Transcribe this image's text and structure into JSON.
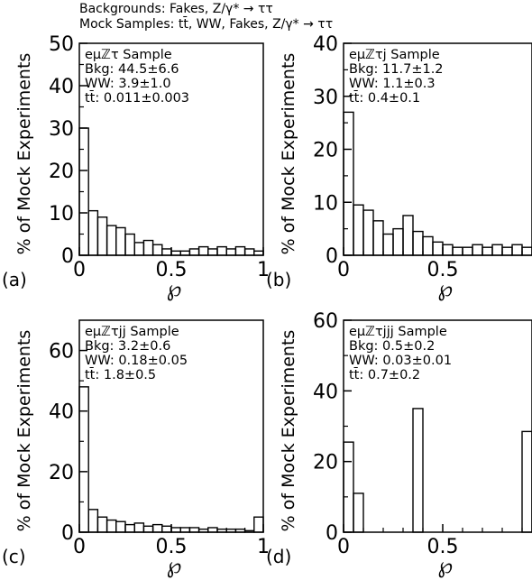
{
  "header": {
    "line1": "Backgrounds: Fakes, Z/γ* → ττ",
    "line2": "Mock Samples: tt̄, WW, Fakes, Z/γ* → ττ"
  },
  "colors": {
    "line": "#000000",
    "background": "#ffffff"
  },
  "chart_data": [
    {
      "type": "histogram",
      "panel_label": "(a)",
      "ylabel": "% of Mock Experiments",
      "xlabel": "℘",
      "xlim": [
        0,
        1
      ],
      "ylim": [
        0,
        50
      ],
      "yticks": [
        0,
        10,
        20,
        30,
        40,
        50
      ],
      "xticks": [
        0,
        0.5,
        1
      ],
      "xtick_labels": [
        "0",
        "0.5",
        "1"
      ],
      "bin_width": 0.05,
      "values": [
        30.0,
        10.5,
        9.0,
        7.0,
        6.5,
        5.0,
        3.0,
        3.5,
        2.5,
        1.5,
        1.0,
        1.0,
        1.5,
        2.0,
        1.5,
        2.0,
        1.5,
        2.0,
        1.5,
        1.0
      ],
      "annotations": [
        "eμℤτ Sample",
        "Bkg: 44.5±6.6",
        "WW: 3.9±1.0",
        "tt̄: 0.011±0.003"
      ]
    },
    {
      "type": "histogram",
      "panel_label": "(b)",
      "ylabel": "% of Mock Experiments",
      "xlabel": "℘",
      "xlim": [
        0,
        0.95
      ],
      "ylim": [
        0,
        40
      ],
      "yticks": [
        0,
        10,
        20,
        30,
        40
      ],
      "xticks": [
        0,
        0.5
      ],
      "xtick_labels": [
        "0",
        "0.5"
      ],
      "bin_width": 0.05,
      "values": [
        27.0,
        9.5,
        8.5,
        6.5,
        4.0,
        5.0,
        7.5,
        4.5,
        3.5,
        2.5,
        2.0,
        1.5,
        1.5,
        2.0,
        1.5,
        2.0,
        1.5,
        2.0,
        1.5
      ],
      "annotations": [
        "eμℤτj Sample",
        "Bkg: 11.7±1.2",
        "WW: 1.1±0.3",
        "tt̄: 0.4±0.1"
      ]
    },
    {
      "type": "histogram",
      "panel_label": "(c)",
      "ylabel": "% of Mock Experiments",
      "xlabel": "℘",
      "xlim": [
        0,
        1
      ],
      "ylim": [
        0,
        70
      ],
      "yticks": [
        0,
        20,
        40,
        60
      ],
      "xticks": [
        0,
        0.5,
        1
      ],
      "xtick_labels": [
        "0",
        "0.5",
        "1"
      ],
      "bin_width": 0.05,
      "values": [
        48.0,
        7.5,
        5.0,
        4.0,
        3.5,
        2.5,
        3.0,
        2.0,
        2.5,
        2.0,
        1.5,
        1.5,
        1.5,
        1.0,
        1.5,
        1.0,
        1.0,
        1.0,
        0.5,
        5.0
      ],
      "annotations": [
        "eμℤτjj Sample",
        "Bkg: 3.2±0.6",
        "WW: 0.18±0.05",
        "tt̄: 1.8±0.5"
      ]
    },
    {
      "type": "histogram",
      "panel_label": "(d)",
      "ylabel": "% of Mock Experiments",
      "xlabel": "℘",
      "xlim": [
        0,
        0.95
      ],
      "ylim": [
        0,
        60
      ],
      "yticks": [
        0,
        20,
        40,
        60
      ],
      "xticks": [
        0,
        0.5
      ],
      "xtick_labels": [
        "0",
        "0.5"
      ],
      "bin_width": 0.05,
      "values": [
        25.5,
        11.0,
        0,
        0,
        0,
        0,
        0,
        35.0,
        0,
        0,
        0,
        0,
        0,
        0,
        0,
        0,
        0,
        0,
        28.5
      ],
      "annotations": [
        "eμℤτjjj Sample",
        "Bkg: 0.5±0.2",
        "WW: 0.03±0.01",
        "tt̄: 0.7±0.2"
      ]
    }
  ]
}
